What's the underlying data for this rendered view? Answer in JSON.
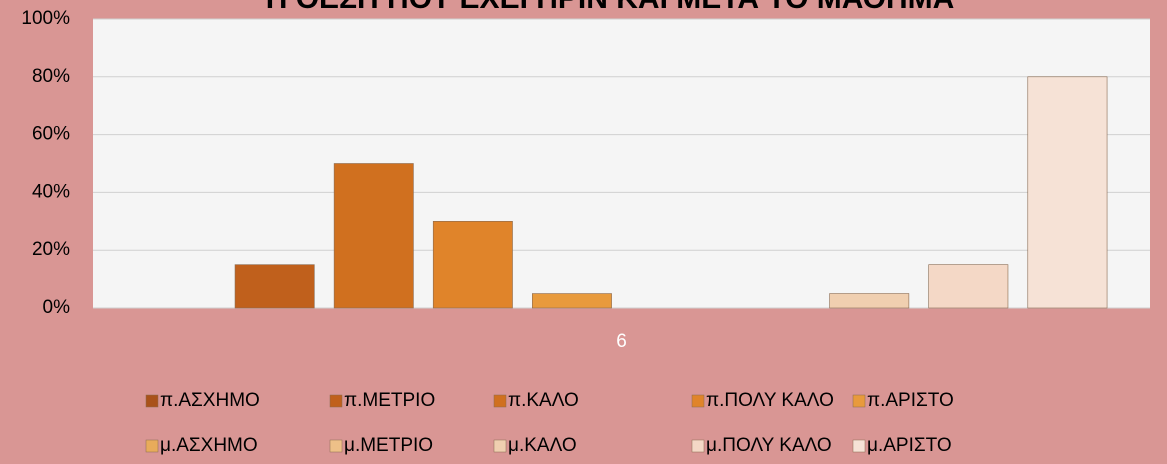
{
  "chart_data": {
    "type": "bar",
    "title": "Η ΘΕΣΗ ΠΟΥ ΕΧΕΙ ΠΡΙΝ ΚΑΙ ΜΕΤΑ ΤΟ ΜΑΘΗΜΑ",
    "categories": [
      "6"
    ],
    "series": [
      {
        "name": "π.ΑΣΧΗΜΟ",
        "color": "#a9521a",
        "values": [
          0
        ]
      },
      {
        "name": "π.ΜΕΤΡΙΟ",
        "color": "#c0601c",
        "values": [
          15
        ]
      },
      {
        "name": "π.ΚΑΛΟ",
        "color": "#d0701f",
        "values": [
          50
        ]
      },
      {
        "name": "π.ΠΟΛΥ ΚΑΛΟ",
        "color": "#e0842a",
        "values": [
          30
        ]
      },
      {
        "name": "π.ΑΡΙΣΤΟ",
        "color": "#e89a3c",
        "values": [
          5
        ]
      },
      {
        "name": "μ.ΑΣΧΗΜΟ",
        "color": "#e8ab5a",
        "values": [
          0
        ]
      },
      {
        "name": "μ.ΜΕΤΡΙΟ",
        "color": "#eec088",
        "values": [
          0
        ]
      },
      {
        "name": "μ.ΚΑΛΟ",
        "color": "#f0cfb0",
        "values": [
          5
        ]
      },
      {
        "name": "μ.ΠΟΛΥ ΚΑΛΟ",
        "color": "#f4d8c6",
        "values": [
          15
        ]
      },
      {
        "name": "μ.ΑΡΙΣΤΟ",
        "color": "#f6e2d6",
        "values": [
          80
        ]
      }
    ],
    "ylim": [
      0,
      100
    ],
    "yticks": [
      {
        "value": 0,
        "label": "0%"
      },
      {
        "value": 20,
        "label": "20%"
      },
      {
        "value": 40,
        "label": "40%"
      },
      {
        "value": 60,
        "label": "60%"
      },
      {
        "value": 80,
        "label": "80%"
      },
      {
        "value": 100,
        "label": "100%"
      }
    ],
    "grid": true
  }
}
